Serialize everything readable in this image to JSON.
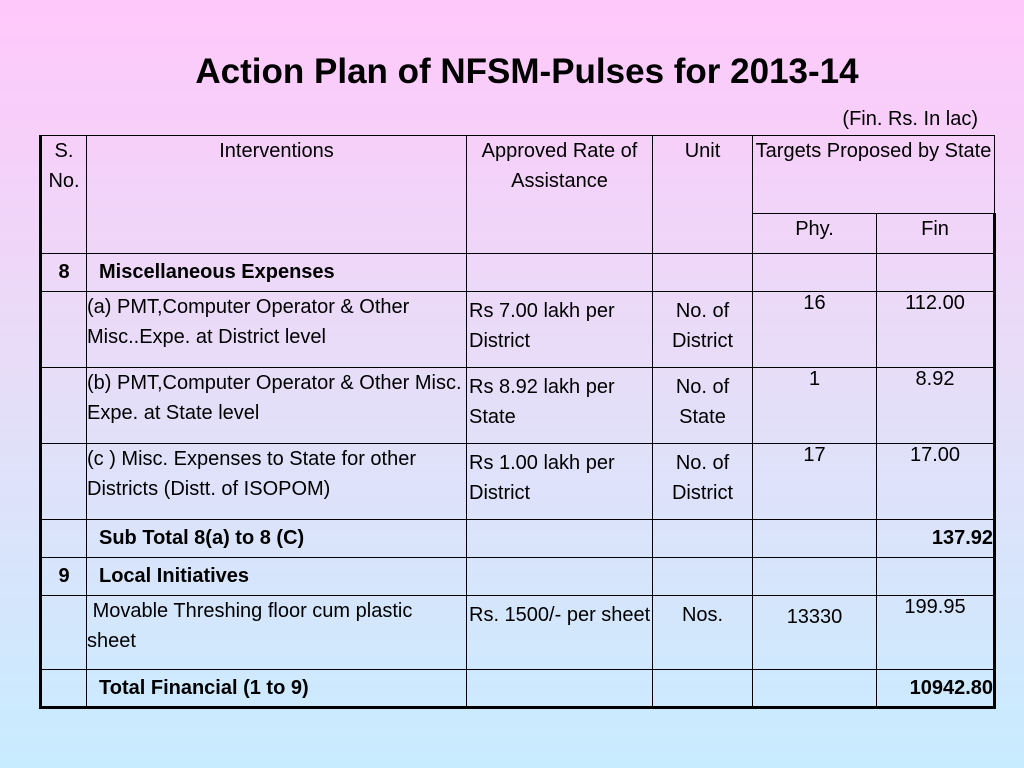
{
  "title": "Action Plan of NFSM-Pulses for 2013-14",
  "unit_note": "(Fin. Rs. In lac)",
  "headers": {
    "sno": "S. No.",
    "interventions": "Interventions",
    "rate": "Approved Rate of Assistance",
    "unit": "Unit",
    "targets": "Targets Proposed by State",
    "phy": "Phy.",
    "fin": "Fin"
  },
  "rows": {
    "misc": {
      "sno": "8",
      "label": "Miscellaneous Expenses"
    },
    "item_a": {
      "label": "(a) PMT,Computer Operator  & Other Misc..Expe. at District level",
      "rate": "Rs 7.00 lakh per District",
      "unit": "No. of District",
      "phy": "16",
      "fin": "112.00"
    },
    "item_b": {
      "label": "(b) PMT,Computer Operator  & Other Misc. Expe. at State level",
      "rate": "Rs 8.92 lakh per State",
      "unit": "No. of State",
      "phy": "1",
      "fin": "8.92"
    },
    "item_c": {
      "label": "(c ) Misc. Expenses to State for other Districts (Distt. of ISOPOM)",
      "rate": "Rs 1.00 lakh per District",
      "unit": "No. of District",
      "phy": "17",
      "fin": "17.00"
    },
    "subtotal": {
      "label": "Sub Total 8(a) to 8 (C)",
      "fin": "137.92"
    },
    "local": {
      "sno": "9",
      "label": "Local Initiatives"
    },
    "threshing": {
      "label": " Movable Threshing floor cum plastic sheet",
      "rate": "Rs. 1500/- per sheet",
      "unit": "Nos.",
      "phy": "13330",
      "fin": "199.95"
    },
    "total": {
      "label": "Total Financial (1 to 9)",
      "fin": "10942.80"
    }
  }
}
